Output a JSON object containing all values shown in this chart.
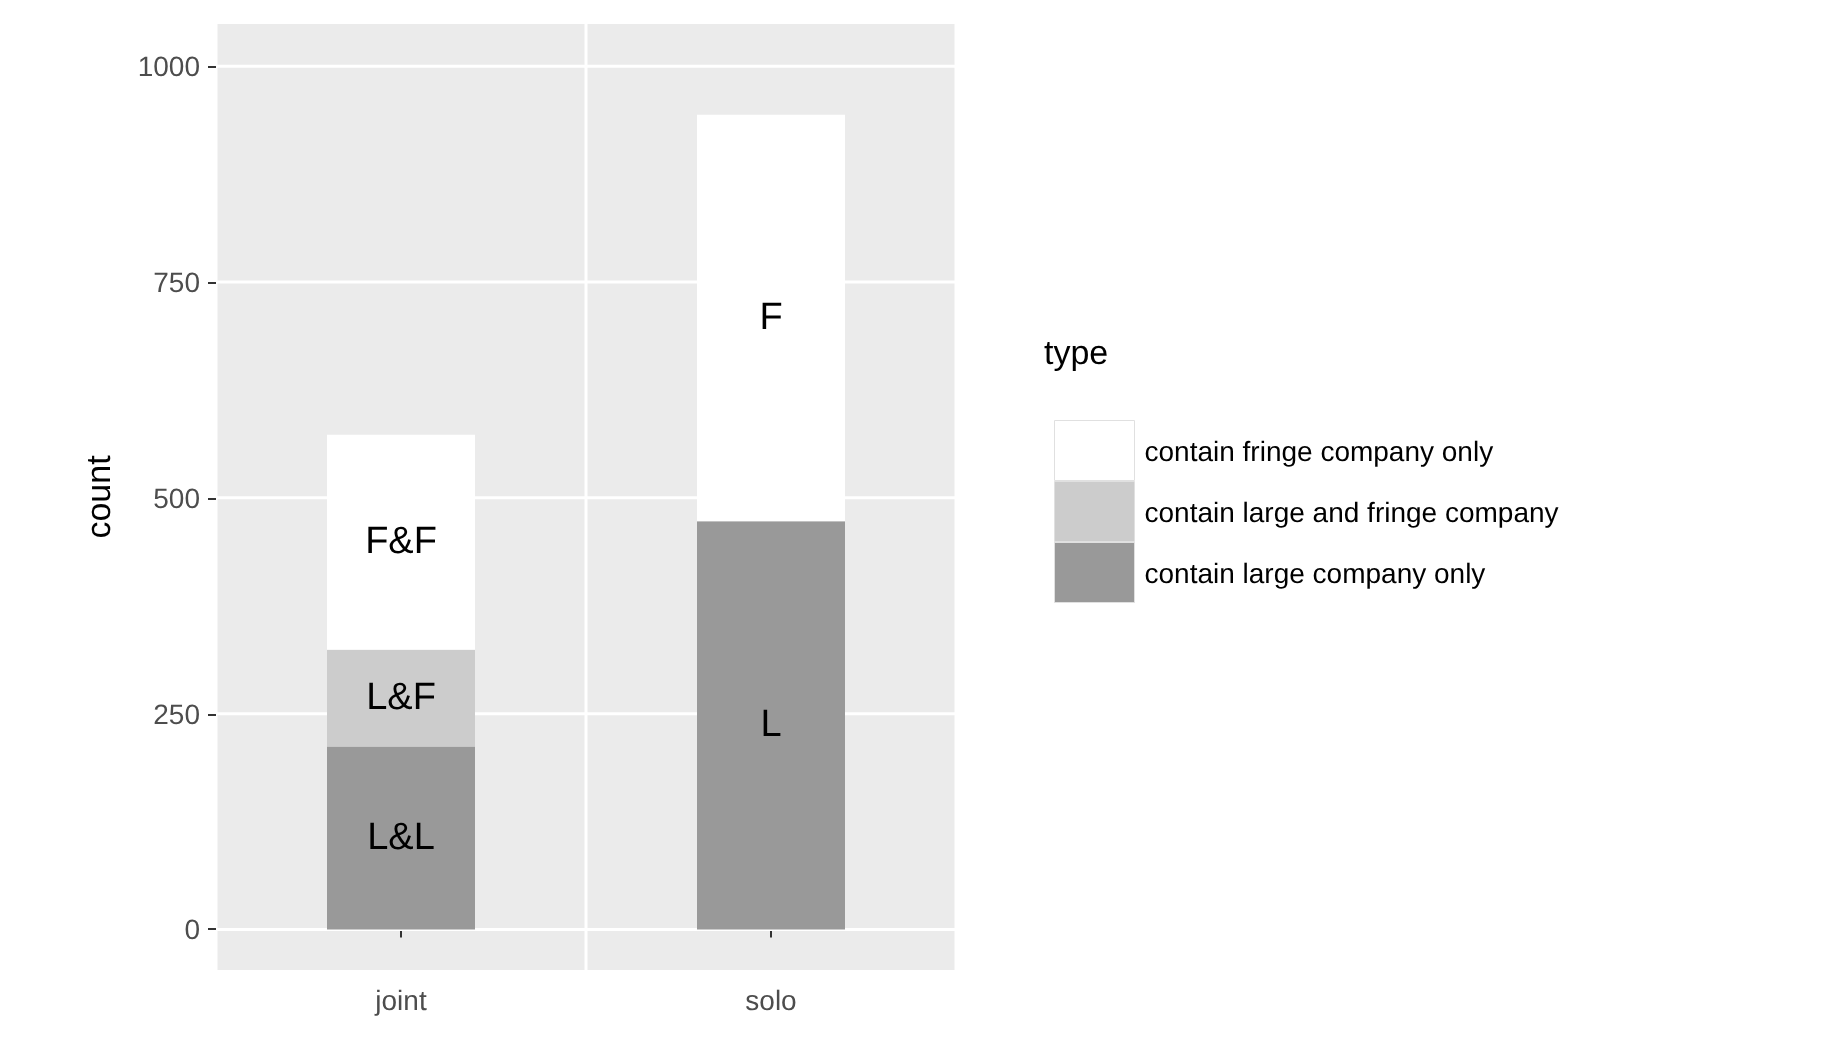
{
  "chart_data": {
    "type": "bar",
    "ylabel": "count",
    "legend_title": "type",
    "categories": [
      "joint",
      "solo"
    ],
    "stacked": true,
    "series": [
      {
        "name": "contain large company only",
        "color": "#999999",
        "values": [
          212,
          473
        ],
        "value_labels": [
          "L&L",
          "L"
        ]
      },
      {
        "name": "contain large and fringe company",
        "color": "#cccccc",
        "values": [
          112,
          null
        ],
        "value_labels": [
          "L&F",
          null
        ]
      },
      {
        "name": "contain fringe company only",
        "color": "#ffffff",
        "values": [
          249,
          471
        ],
        "value_labels": [
          "F&F",
          "F"
        ]
      }
    ],
    "ylim": [
      -47,
      1049
    ],
    "yticks": [
      0,
      250,
      500,
      750,
      1000
    ],
    "grid": true,
    "legend": "right"
  }
}
